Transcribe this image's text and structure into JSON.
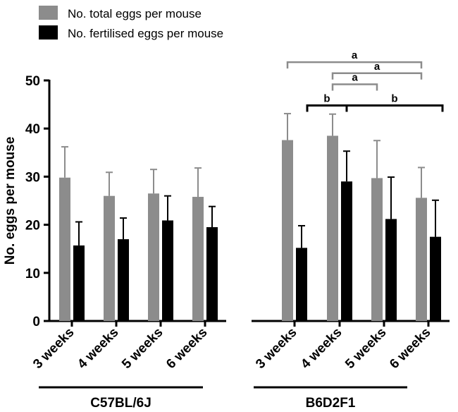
{
  "chart_data": {
    "type": "bar",
    "ylabel": "No. eggs per mouse",
    "ylim": [
      0,
      50
    ],
    "yticks": [
      0,
      10,
      20,
      30,
      40,
      50
    ],
    "categories": [
      "3 weeks",
      "4 weeks",
      "5 weeks",
      "6 weeks",
      "3 weeks",
      "4 weeks",
      "5 weeks",
      "6 weeks"
    ],
    "groups": [
      {
        "label": "C57BL/6J",
        "category_indices": [
          0,
          1,
          2,
          3
        ]
      },
      {
        "label": "B6D2F1",
        "category_indices": [
          4,
          5,
          6,
          7
        ]
      }
    ],
    "series": [
      {
        "name": "No. total eggs per mouse",
        "color": "#8c8c8c",
        "values": [
          29.8,
          26.0,
          26.5,
          25.8,
          37.6,
          38.5,
          29.7,
          25.6
        ],
        "errors": [
          6.4,
          4.9,
          5.0,
          6.0,
          5.5,
          4.5,
          7.8,
          6.3
        ]
      },
      {
        "name": "No. fertilised eggs per mouse",
        "color": "#000000",
        "values": [
          15.7,
          17.0,
          20.9,
          19.5,
          15.2,
          29.0,
          21.2,
          17.5
        ],
        "errors": [
          4.9,
          4.4,
          5.1,
          4.3,
          4.6,
          6.3,
          8.7,
          7.6
        ]
      }
    ],
    "significance": [
      {
        "label": "a",
        "color": "#8c8c8c",
        "from_category": 4,
        "to_category": 7,
        "at": 53.8
      },
      {
        "label": "a",
        "color": "#8c8c8c",
        "from_category": 5,
        "to_category": 7,
        "at": 51.5
      },
      {
        "label": "a",
        "color": "#8c8c8c",
        "from_category": 5,
        "to_category": 6,
        "at": 49.2
      },
      {
        "label": "b",
        "color": "#000000",
        "from_category": 4,
        "to_category": 5,
        "at": 44.8
      },
      {
        "label": "b",
        "color": "#000000",
        "from_category": 5,
        "to_category": 7,
        "at": 44.8
      }
    ]
  }
}
